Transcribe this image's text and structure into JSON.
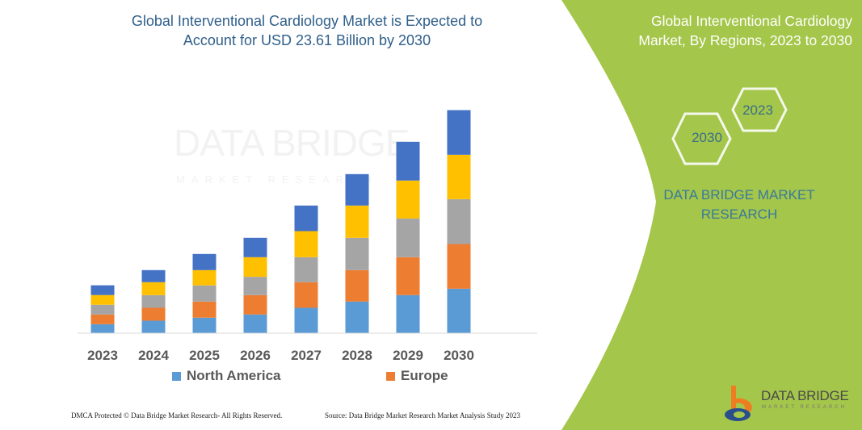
{
  "title": "Global Interventional Cardiology Market is Expected to Account for USD 23.61 Billion by 2030",
  "side_panel": {
    "title": "Global Interventional Cardiology Market, By Regions, 2023 to 2030",
    "hex_2023": "2023",
    "hex_2030": "2030",
    "brand": "DATA BRIDGE MARKET RESEARCH",
    "logo_text": "DATA BRIDGE",
    "logo_sub": "MARKET RESEARCH",
    "color": "#a4c64a"
  },
  "watermark": {
    "text": "DATA BRIDGE",
    "sub": "MARKET RESEARCH"
  },
  "footer": {
    "left": "DMCA Protected © Data Bridge Market Research- All Rights Reserved.",
    "right": "Source: Data Bridge Market Research Market Analysis Study 2023"
  },
  "chart_data": {
    "type": "bar",
    "stacked": true,
    "categories": [
      "2023",
      "2024",
      "2025",
      "2026",
      "2027",
      "2028",
      "2029",
      "2030"
    ],
    "ylabel": "",
    "xlabel": "",
    "grid": false,
    "legend_position": "bottom",
    "series": [
      {
        "name": "North America",
        "color": "#5b9bd5",
        "values": [
          0.91,
          1.28,
          1.6,
          1.94,
          2.65,
          3.31,
          3.99,
          4.67
        ]
      },
      {
        "name": "Europe",
        "color": "#ed7d31",
        "values": [
          1.03,
          1.37,
          1.71,
          2.05,
          2.71,
          3.33,
          4.02,
          4.73
        ]
      },
      {
        "color": "#a5a5a5",
        "values": [
          1.03,
          1.34,
          1.71,
          1.94,
          2.65,
          3.42,
          4.1,
          4.76
        ]
      },
      {
        "color": "#ffc000",
        "values": [
          1.03,
          1.37,
          1.62,
          2.08,
          2.76,
          3.42,
          4.02,
          4.7
        ]
      },
      {
        "color": "#4472c4",
        "values": [
          1.03,
          1.28,
          1.71,
          2.05,
          2.71,
          3.33,
          4.1,
          4.73
        ]
      }
    ]
  }
}
